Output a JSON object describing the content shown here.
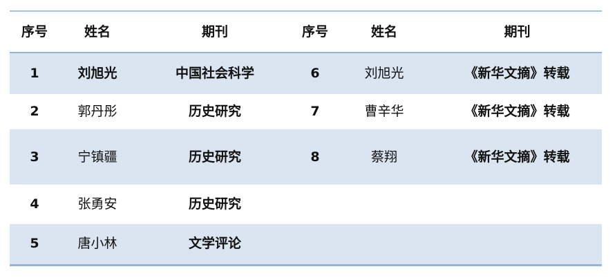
{
  "page": {
    "background": "#ffffff"
  },
  "table": {
    "style": {
      "shaded_row_bg": "#dbe5f1",
      "top_border_color": "#a3c2e3",
      "header_rule_color": "#95b3d7",
      "bottom_border_color": "#95b3d7",
      "text_color": "#111111"
    },
    "columns": [
      {
        "key": "index_left",
        "label": "序号"
      },
      {
        "key": "name_left",
        "label": "姓名"
      },
      {
        "key": "journal_left",
        "label": "期刊"
      },
      {
        "key": "index_right",
        "label": "序号"
      },
      {
        "key": "name_right",
        "label": "姓名"
      },
      {
        "key": "journal_right",
        "label": "期刊"
      }
    ],
    "rows": [
      {
        "cells": [
          {
            "text": "1",
            "bold": true
          },
          {
            "text": "刘旭光",
            "bold": true
          },
          {
            "text": "中国社会科学",
            "bold": true
          },
          {
            "text": "6",
            "bold": true
          },
          {
            "text": "刘旭光",
            "bold": false
          },
          {
            "text": "《新华文摘》转载",
            "bold": true
          }
        ]
      },
      {
        "cells": [
          {
            "text": "2",
            "bold": true
          },
          {
            "text": "郭丹彤",
            "bold": false
          },
          {
            "text": "历史研究",
            "bold": true
          },
          {
            "text": "7",
            "bold": true
          },
          {
            "text": "曹辛华",
            "bold": false
          },
          {
            "text": "《新华文摘》转载",
            "bold": true
          }
        ]
      },
      {
        "cells": [
          {
            "text": "3",
            "bold": true
          },
          {
            "text": "宁镇疆",
            "bold": false
          },
          {
            "text": "历史研究",
            "bold": true
          },
          {
            "text": "8",
            "bold": true
          },
          {
            "text": "蔡翔",
            "bold": false
          },
          {
            "text": "《新华文摘》转载",
            "bold": true
          }
        ]
      },
      {
        "cells": [
          {
            "text": "4",
            "bold": true
          },
          {
            "text": "张勇安",
            "bold": false
          },
          {
            "text": "历史研究",
            "bold": true
          },
          {
            "text": "",
            "bold": false
          },
          {
            "text": "",
            "bold": false
          },
          {
            "text": "",
            "bold": false
          }
        ]
      },
      {
        "cells": [
          {
            "text": "5",
            "bold": true
          },
          {
            "text": "唐小林",
            "bold": false
          },
          {
            "text": "文学评论",
            "bold": true
          },
          {
            "text": "",
            "bold": false
          },
          {
            "text": "",
            "bold": false
          },
          {
            "text": "",
            "bold": false
          }
        ]
      }
    ]
  }
}
